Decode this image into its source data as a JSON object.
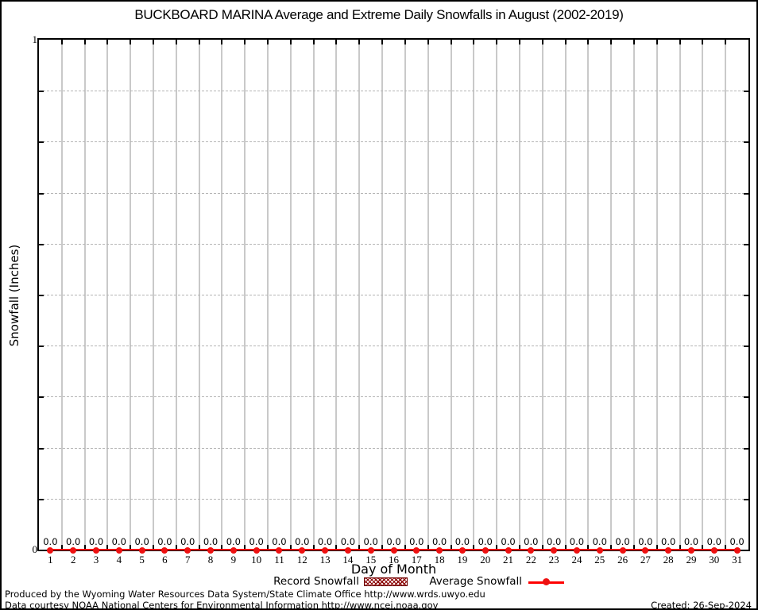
{
  "title": "BUCKBOARD MARINA Average and Extreme Daily Snowfalls in August (2002-2019)",
  "y_axis": {
    "label": "Snowfall (Inches)",
    "max_label": "1",
    "min_label": "0"
  },
  "x_axis": {
    "label": "Day of Month"
  },
  "legend": {
    "record_label": "Record Snowfall",
    "average_label": "Average Snowfall"
  },
  "footer": {
    "produced": "Produced by the Wyoming Water Resources Data System/State Climate Office http://www.wrds.uwyo.edu",
    "courtesy": "Data courtesy NOAA National Centers for Environmental Information http://www.ncei.noaa.gov",
    "created": "Created: 26-Sep-2024"
  },
  "colors": {
    "average_line": "#ff0000",
    "point_fill": "#ee1111",
    "record_fill": "#8b0000",
    "v_grid": "#c9c9c9",
    "h_grid": "#b5b5b5",
    "axis": "#000000"
  },
  "chart_data": {
    "type": "line",
    "title": "BUCKBOARD MARINA Average and Extreme Daily Snowfalls in August (2002-2019)",
    "xlabel": "Day of Month",
    "ylabel": "Snowfall (Inches)",
    "x": [
      1,
      2,
      3,
      4,
      5,
      6,
      7,
      8,
      9,
      10,
      11,
      12,
      13,
      14,
      15,
      16,
      17,
      18,
      19,
      20,
      21,
      22,
      23,
      24,
      25,
      26,
      27,
      28,
      29,
      30,
      31
    ],
    "series": [
      {
        "name": "Record Snowfall",
        "style": "hatched-bar",
        "color": "#8b0000",
        "values": [
          0.0,
          0.0,
          0.0,
          0.0,
          0.0,
          0.0,
          0.0,
          0.0,
          0.0,
          0.0,
          0.0,
          0.0,
          0.0,
          0.0,
          0.0,
          0.0,
          0.0,
          0.0,
          0.0,
          0.0,
          0.0,
          0.0,
          0.0,
          0.0,
          0.0,
          0.0,
          0.0,
          0.0,
          0.0,
          0.0,
          0.0
        ]
      },
      {
        "name": "Average Snowfall",
        "style": "line-point",
        "color": "#ff0000",
        "values": [
          0.0,
          0.0,
          0.0,
          0.0,
          0.0,
          0.0,
          0.0,
          0.0,
          0.0,
          0.0,
          0.0,
          0.0,
          0.0,
          0.0,
          0.0,
          0.0,
          0.0,
          0.0,
          0.0,
          0.0,
          0.0,
          0.0,
          0.0,
          0.0,
          0.0,
          0.0,
          0.0,
          0.0,
          0.0,
          0.0,
          0.0
        ]
      }
    ],
    "point_labels": [
      "0.0",
      "0.0",
      "0.0",
      "0.0",
      "0.0",
      "0.0",
      "0.0",
      "0.0",
      "0.0",
      "0.0",
      "0.0",
      "0.0",
      "0.0",
      "0.0",
      "0.0",
      "0.0",
      "0.0",
      "0.0",
      "0.0",
      "0.0",
      "0.0",
      "0.0",
      "0.0",
      "0.0",
      "0.0",
      "0.0",
      "0.0",
      "0.0",
      "0.0",
      "0.0",
      "0.0"
    ],
    "xlim": [
      0.5,
      31.5
    ],
    "ylim": [
      0,
      1
    ],
    "y_minor_divisions": 10,
    "grid": true,
    "legend_position": "bottom"
  }
}
